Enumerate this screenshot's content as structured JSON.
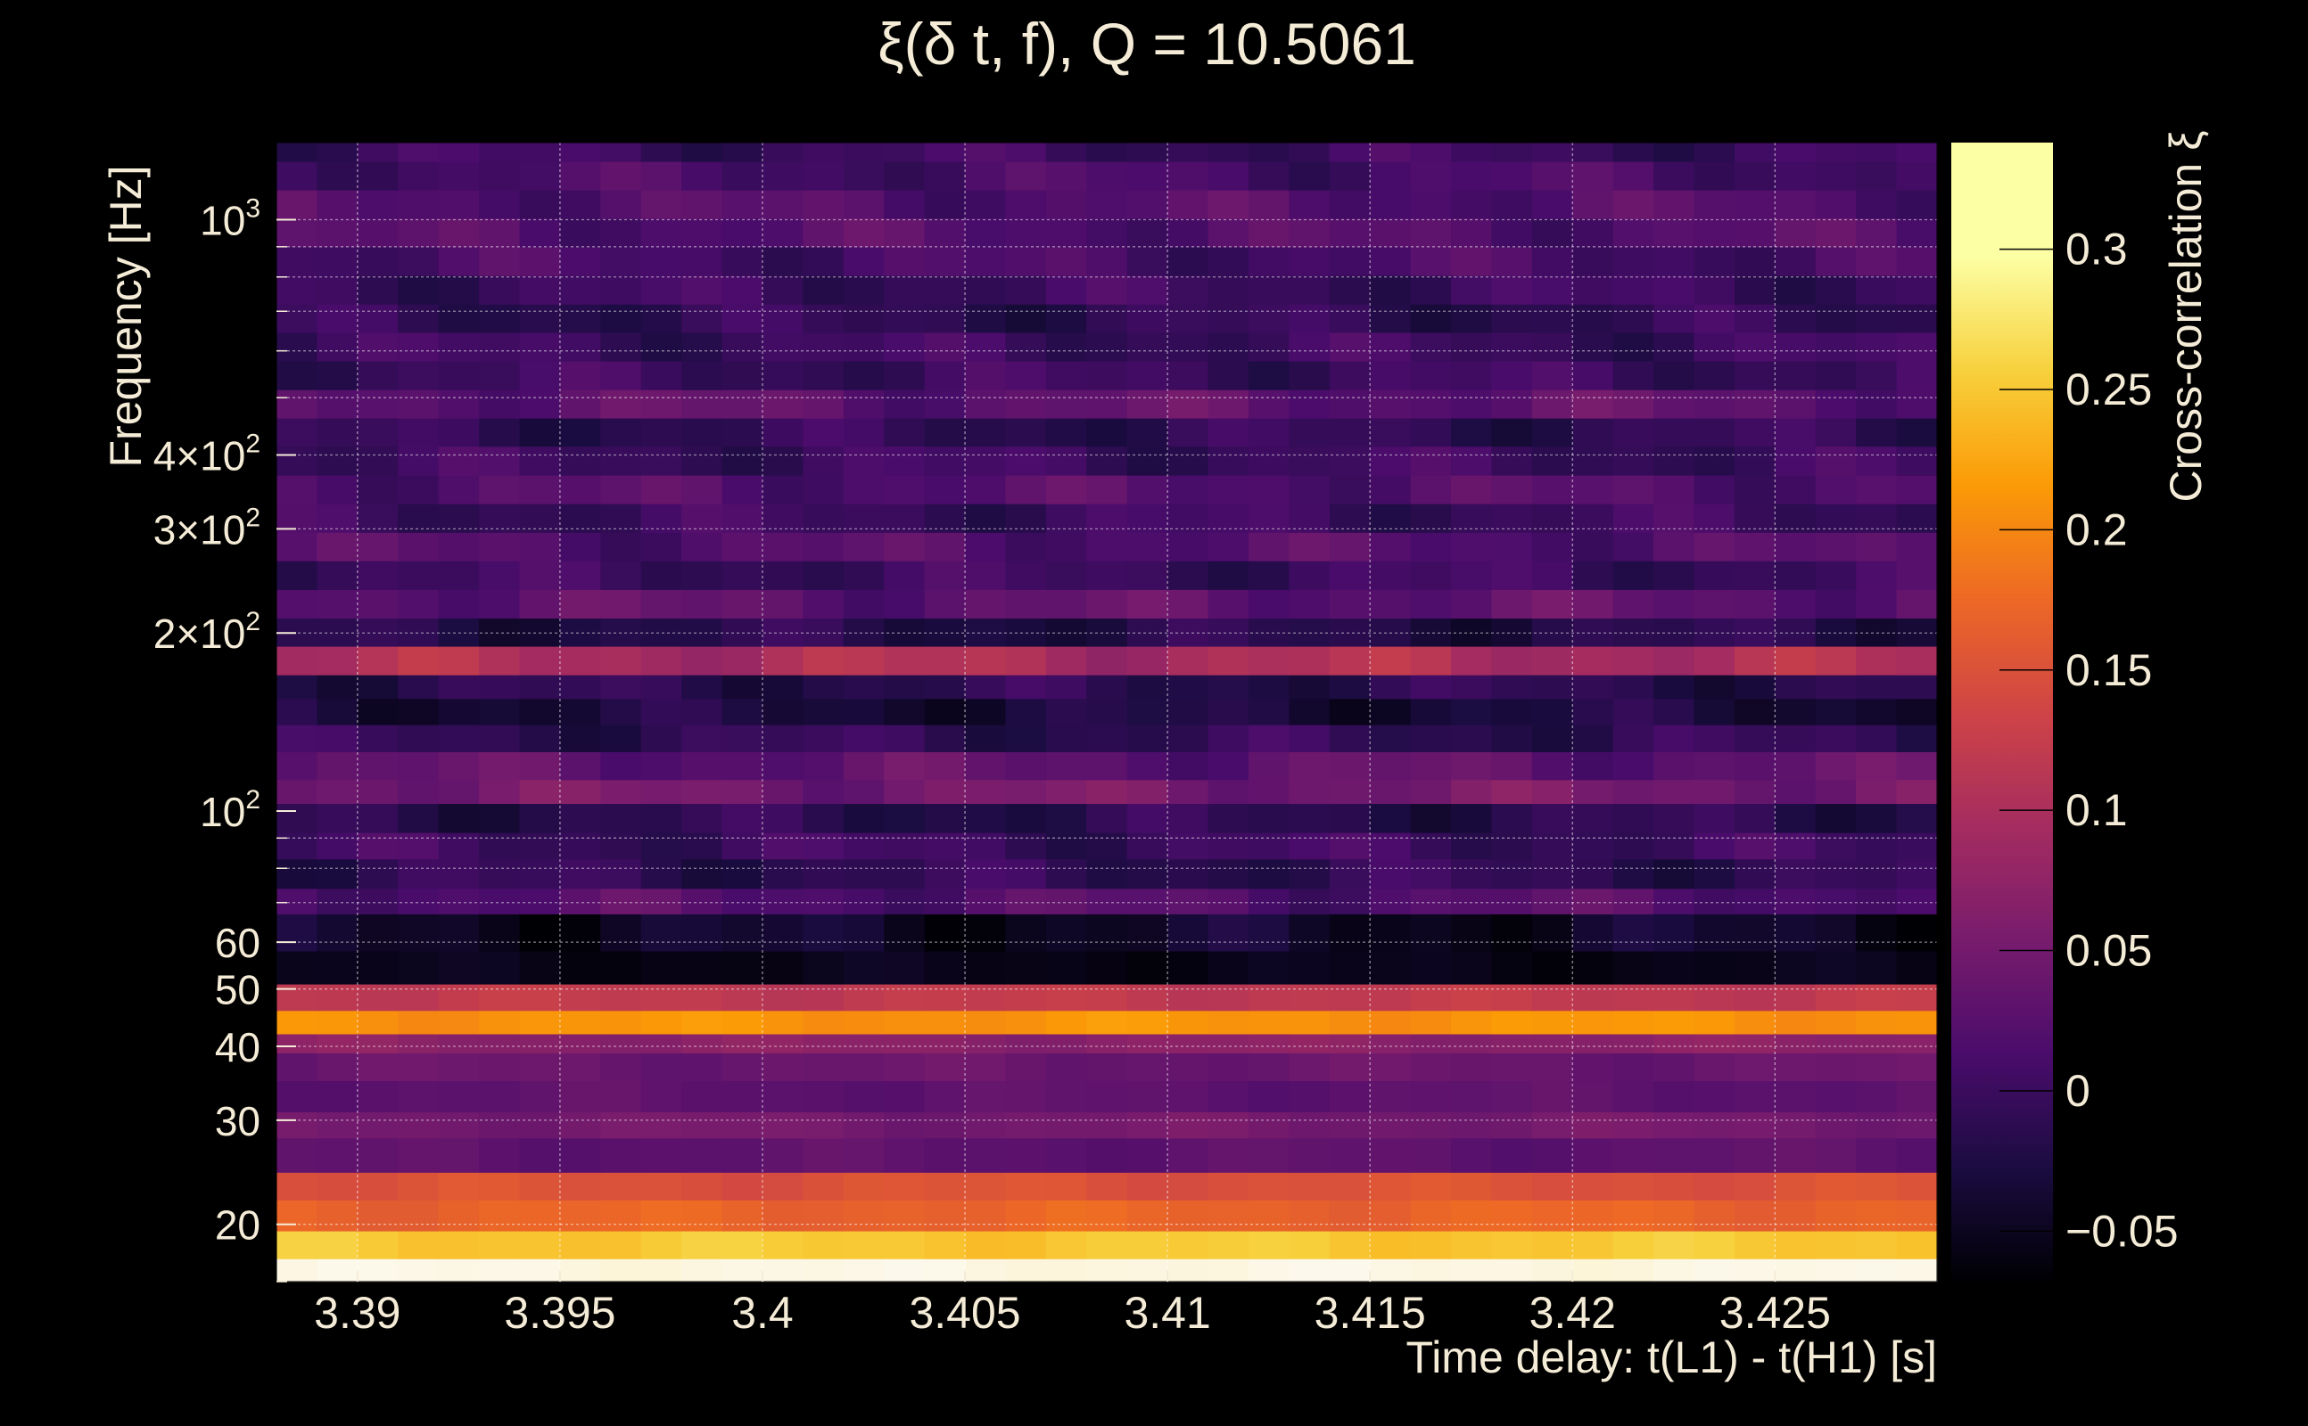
{
  "chart_data": {
    "type": "heatmap",
    "title": "ξ(δ t, f), Q = 10.5061",
    "xlabel": "Time delay: t(L1) - t(H1) [s]",
    "ylabel": "Frequency [Hz]",
    "colorbar_label": "Cross-correlation ξ",
    "colorscale": "inferno",
    "xlim": [
      3.388,
      3.429
    ],
    "ylim": [
      16,
      1350
    ],
    "yscale": "log",
    "grid": true,
    "clim": [
      -0.068,
      0.338
    ],
    "x_ticks": [
      {
        "value": 3.39,
        "label": "3.39"
      },
      {
        "value": 3.395,
        "label": "3.395"
      },
      {
        "value": 3.4,
        "label": "3.4"
      },
      {
        "value": 3.405,
        "label": "3.405"
      },
      {
        "value": 3.41,
        "label": "3.41"
      },
      {
        "value": 3.415,
        "label": "3.415"
      },
      {
        "value": 3.42,
        "label": "3.42"
      },
      {
        "value": 3.425,
        "label": "3.425"
      }
    ],
    "y_ticks": [
      {
        "value": 20,
        "base": "20",
        "exp": ""
      },
      {
        "value": 30,
        "base": "30",
        "exp": ""
      },
      {
        "value": 40,
        "base": "40",
        "exp": ""
      },
      {
        "value": 50,
        "base": "50",
        "exp": ""
      },
      {
        "value": 60,
        "base": "60",
        "exp": ""
      },
      {
        "value": 100,
        "base": "10",
        "exp": "2"
      },
      {
        "value": 200,
        "base": "2×10",
        "exp": "2"
      },
      {
        "value": 300,
        "base": "3×10",
        "exp": "2"
      },
      {
        "value": 400,
        "base": "4×10",
        "exp": "2"
      },
      {
        "value": 1000,
        "base": "10",
        "exp": "3"
      }
    ],
    "colorbar_ticks": [
      {
        "value": -0.05,
        "label": "−0.05"
      },
      {
        "value": 0,
        "label": "0"
      },
      {
        "value": 0.05,
        "label": "0.05"
      },
      {
        "value": 0.1,
        "label": "0.1"
      },
      {
        "value": 0.15,
        "label": "0.15"
      },
      {
        "value": 0.2,
        "label": "0.2"
      },
      {
        "value": 0.25,
        "label": "0.25"
      },
      {
        "value": 0.3,
        "label": "0.3"
      }
    ],
    "frequency_bands": [
      {
        "f_low": 16,
        "f_high": 17.5,
        "xi": 0.33
      },
      {
        "f_low": 17.5,
        "f_high": 19.5,
        "xi": 0.25
      },
      {
        "f_low": 19.5,
        "f_high": 22,
        "xi": 0.17
      },
      {
        "f_low": 22,
        "f_high": 24.5,
        "xi": 0.15
      },
      {
        "f_low": 24.5,
        "f_high": 28,
        "xi": 0.03
      },
      {
        "f_low": 28,
        "f_high": 31,
        "xi": 0.05
      },
      {
        "f_low": 31,
        "f_high": 35,
        "xi": 0.03
      },
      {
        "f_low": 35,
        "f_high": 39,
        "xi": 0.04
      },
      {
        "f_low": 39,
        "f_high": 42,
        "xi": 0.07
      },
      {
        "f_low": 42,
        "f_high": 46,
        "xi": 0.21
      },
      {
        "f_low": 46,
        "f_high": 51,
        "xi": 0.12
      },
      {
        "f_low": 51,
        "f_high": 58,
        "xi": -0.055
      },
      {
        "f_low": 58,
        "f_high": 67,
        "xi": -0.045
      },
      {
        "f_low": 67,
        "f_high": 74,
        "xi": 0.02
      },
      {
        "f_low": 74,
        "f_high": 83,
        "xi": -0.01
      },
      {
        "f_low": 83,
        "f_high": 92,
        "xi": 0.0
      },
      {
        "f_low": 92,
        "f_high": 103,
        "xi": -0.015
      },
      {
        "f_low": 103,
        "f_high": 113,
        "xi": 0.05
      },
      {
        "f_low": 113,
        "f_high": 126,
        "xi": 0.03
      },
      {
        "f_low": 126,
        "f_high": 140,
        "xi": -0.01
      },
      {
        "f_low": 140,
        "f_high": 155,
        "xi": -0.03
      },
      {
        "f_low": 155,
        "f_high": 170,
        "xi": -0.015
      },
      {
        "f_low": 170,
        "f_high": 190,
        "xi": 0.1
      },
      {
        "f_low": 190,
        "f_high": 212,
        "xi": -0.02
      },
      {
        "f_low": 212,
        "f_high": 237,
        "xi": 0.03
      },
      {
        "f_low": 237,
        "f_high": 265,
        "xi": 0.0
      },
      {
        "f_low": 265,
        "f_high": 296,
        "xi": 0.02
      },
      {
        "f_low": 296,
        "f_high": 331,
        "xi": 0.0
      },
      {
        "f_low": 331,
        "f_high": 370,
        "xi": 0.02
      },
      {
        "f_low": 370,
        "f_high": 414,
        "xi": 0.0
      },
      {
        "f_low": 414,
        "f_high": 462,
        "xi": -0.01
      },
      {
        "f_low": 462,
        "f_high": 516,
        "xi": 0.03
      },
      {
        "f_low": 516,
        "f_high": 577,
        "xi": 0.0
      },
      {
        "f_low": 577,
        "f_high": 645,
        "xi": 0.0
      },
      {
        "f_low": 645,
        "f_high": 720,
        "xi": -0.01
      },
      {
        "f_low": 720,
        "f_high": 805,
        "xi": 0.0
      },
      {
        "f_low": 805,
        "f_high": 900,
        "xi": 0.01
      },
      {
        "f_low": 900,
        "f_high": 1005,
        "xi": 0.02
      },
      {
        "f_low": 1005,
        "f_high": 1123,
        "xi": 0.02
      },
      {
        "f_low": 1123,
        "f_high": 1255,
        "xi": 0.01
      },
      {
        "f_low": 1255,
        "f_high": 1350,
        "xi": 0.0
      }
    ]
  }
}
